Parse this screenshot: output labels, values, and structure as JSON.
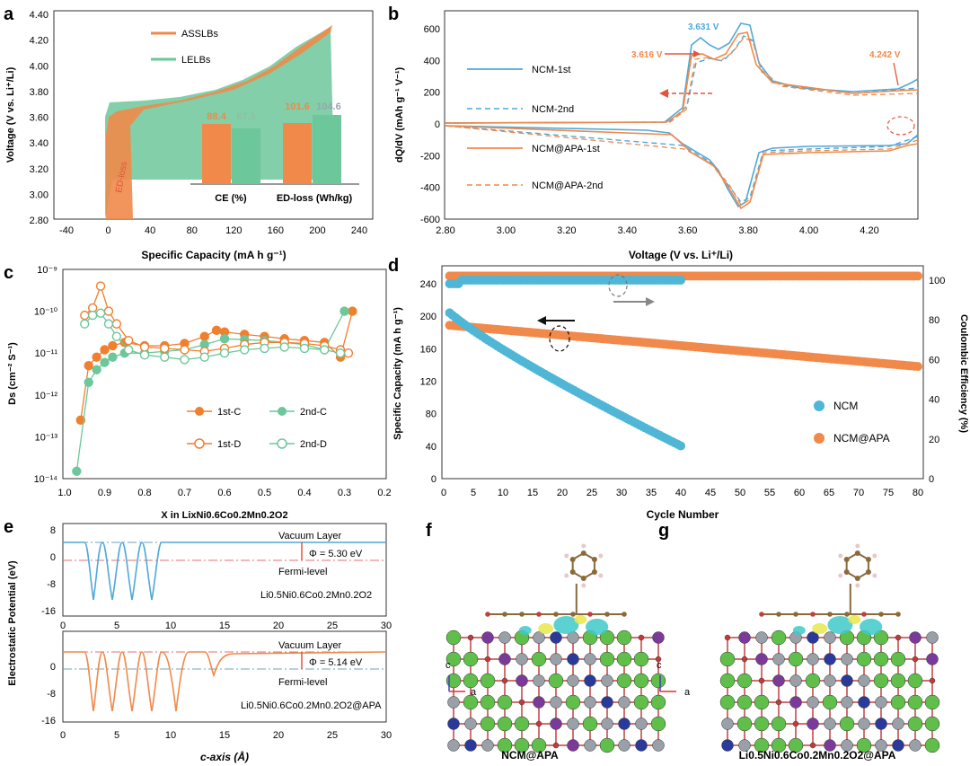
{
  "panels": {
    "a": {
      "letter": "a",
      "ylabel": "Voltage (V vs. Li⁺/Li)",
      "xlabel": "Specific Capacity (mA h g⁻¹)",
      "legend": [
        "ASSLBs",
        "LELBs"
      ],
      "colors": {
        "asslb": "#f0894a",
        "lelb": "#6cc79a"
      },
      "yticks": [
        "2.80",
        "3.00",
        "3.20",
        "3.40",
        "3.60",
        "3.80",
        "4.00",
        "4.20",
        "4.40"
      ],
      "xticks": [
        "-40",
        "0",
        "40",
        "80",
        "120",
        "160",
        "200",
        "240"
      ],
      "annotation": "ED-loss",
      "inset": {
        "groups": [
          "CE (%)",
          "ED-loss (Wh/kg)"
        ],
        "values": [
          [
            88.4,
            87.5
          ],
          [
            101.6,
            104.6
          ]
        ],
        "labels": [
          [
            "88.4",
            "87.5"
          ],
          [
            "101.6",
            "104.6"
          ]
        ]
      }
    },
    "b": {
      "letter": "b",
      "ylabel": "dQ/dV (mAh g⁻¹ V⁻¹)",
      "xlabel": "Voltage (V vs. Li⁺/Li)",
      "legend": [
        "NCM-1st",
        "NCM-2nd",
        "NCM@APA-1st",
        "NCM@APA-2nd"
      ],
      "yticks": [
        "600",
        "400",
        "200",
        "0",
        "-200",
        "-400",
        "-600"
      ],
      "xticks": [
        "2.80",
        "3.00",
        "3.20",
        "3.40",
        "3.60",
        "3.80",
        "4.00",
        "4.20"
      ],
      "ann": [
        "3.631 V",
        "3.616 V",
        "4.242 V"
      ]
    },
    "c": {
      "letter": "c",
      "ylabel": "Ds (cm⁻² S⁻¹)",
      "xlabel": "X in LixNi0.6Co0.2Mn0.2O2",
      "yticks": [
        "10⁻⁹",
        "10⁻¹⁰",
        "10⁻¹¹",
        "10⁻¹²",
        "10⁻¹³",
        "10⁻¹⁴"
      ],
      "xticks": [
        "1.0",
        "0.9",
        "0.8",
        "0.7",
        "0.6",
        "0.5",
        "0.4",
        "0.3",
        "0.2"
      ],
      "legend": [
        "1st-C",
        "2nd-C",
        "1st-D",
        "2nd-D"
      ]
    },
    "d": {
      "letter": "d",
      "ylabel": "Specific Capacity (mA h g⁻¹)",
      "ylabel2": "Coulombic Efficiency (%)",
      "xlabel": "Cycle Number",
      "yticks": [
        "240",
        "200",
        "160",
        "120",
        "80",
        "40",
        "0"
      ],
      "y2ticks": [
        "100",
        "80",
        "60",
        "40",
        "20",
        "0"
      ],
      "xticks": [
        "0",
        "5",
        "10",
        "15",
        "20",
        "25",
        "30",
        "35",
        "40",
        "45",
        "50",
        "55",
        "60",
        "65",
        "70",
        "75",
        "80"
      ],
      "legend": [
        "NCM",
        "NCM@APA"
      ],
      "colors": {
        "ncm": "#4fb6d6",
        "apa": "#f0894a"
      }
    },
    "e": {
      "letter": "e",
      "ylabel": "Electrostatic Potential (eV)",
      "xlabel": "c-axis (Å)",
      "yticks": [
        "0",
        "-8",
        "-16"
      ],
      "yticks_top": [
        "8",
        "0",
        "-8",
        "-16"
      ],
      "xticks": [
        "0",
        "5",
        "10",
        "15",
        "20",
        "25",
        "30"
      ],
      "top": {
        "vacuum": "Vacuum Layer",
        "fermi": "Fermi-level",
        "phi": "Φ = 5.30 eV",
        "formula": "Li0.5Ni0.6Co0.2Mn0.2O2"
      },
      "bottom": {
        "vacuum": "Vacuum Layer",
        "fermi": "Fermi-level",
        "phi": "Φ = 5.14 eV",
        "formula": "Li0.5Ni0.6Co0.2Mn0.2O2@APA"
      }
    },
    "f": {
      "letter": "f",
      "caption": "NCM@APA",
      "axis_c": "c",
      "axis_a": "a"
    },
    "g": {
      "letter": "g",
      "caption": "Li0.5Ni0.6Co0.2Mn0.2O2@APA",
      "axis_c": "c",
      "axis_a": "a"
    }
  },
  "chart_data": [
    {
      "type": "line",
      "panel": "a",
      "xlabel": "Specific Capacity (mA h g⁻¹)",
      "ylabel": "Voltage (V vs. Li⁺/Li)",
      "xlim": [
        -40,
        240
      ],
      "ylim": [
        2.8,
        4.4
      ],
      "series": [
        {
          "name": "ASSLBs",
          "x": [
            0,
            1,
            2,
            5,
            20,
            60,
            100,
            140,
            180,
            210
          ],
          "y": [
            2.8,
            3.4,
            3.55,
            3.62,
            3.66,
            3.7,
            3.78,
            3.9,
            4.1,
            4.3
          ]
        },
        {
          "name": "LELBs",
          "x": [
            0,
            1,
            5,
            20,
            60,
            100,
            140,
            180,
            212
          ],
          "y": [
            2.8,
            3.68,
            3.7,
            3.71,
            3.73,
            3.79,
            3.91,
            4.1,
            4.3
          ]
        }
      ],
      "inset": {
        "type": "bar",
        "categories": [
          "CE (%)",
          "ED-loss (Wh/kg)"
        ],
        "series": [
          {
            "name": "ASSLBs",
            "values": [
              88.4,
              101.6
            ]
          },
          {
            "name": "LELBs",
            "values": [
              87.5,
              104.6
            ]
          }
        ]
      }
    },
    {
      "type": "line",
      "panel": "b",
      "xlabel": "Voltage (V vs. Li⁺/Li)",
      "ylabel": "dQ/dV (mAh g⁻¹ V⁻¹)",
      "xlim": [
        2.8,
        4.3
      ],
      "ylim": [
        -600,
        650
      ],
      "series": [
        {
          "name": "NCM-1st",
          "peaks": [
            [
              3.631,
              520
            ],
            [
              3.76,
              630
            ],
            [
              3.76,
              -530
            ]
          ]
        },
        {
          "name": "NCM-2nd",
          "peaks": [
            [
              3.63,
              420
            ],
            [
              3.76,
              540
            ],
            [
              3.75,
              -510
            ]
          ]
        },
        {
          "name": "NCM@APA-1st",
          "peaks": [
            [
              3.616,
              430
            ],
            [
              3.76,
              580
            ],
            [
              3.75,
              -540
            ]
          ]
        },
        {
          "name": "NCM@APA-2nd",
          "peaks": [
            [
              3.62,
              400
            ],
            [
              3.76,
              550
            ],
            [
              3.75,
              -520
            ]
          ]
        }
      ]
    },
    {
      "type": "scatter",
      "panel": "c",
      "xlabel": "X in LixNi0.6Co0.2Mn0.2O2",
      "ylabel": "Ds (cm⁻² S⁻¹)",
      "xlim": [
        1.0,
        0.2
      ],
      "ylim": [
        1e-14,
        1e-09
      ],
      "yscale": "log",
      "series": [
        {
          "name": "1st-C",
          "x": [
            0.96,
            0.94,
            0.92,
            0.9,
            0.88,
            0.85,
            0.8,
            0.75,
            0.7,
            0.65,
            0.62,
            0.6,
            0.55,
            0.5,
            0.45,
            0.4,
            0.35,
            0.31,
            0.28
          ],
          "y": [
            2.5e-13,
            5e-12,
            8e-12,
            1.2e-11,
            1.5e-11,
            1.8e-11,
            1.5e-11,
            1.5e-11,
            1.7e-11,
            2.5e-11,
            3.5e-11,
            3.2e-11,
            2.8e-11,
            2.5e-11,
            2.2e-11,
            2e-11,
            1.8e-11,
            8e-12,
            1e-10
          ]
        },
        {
          "name": "2nd-C",
          "x": [
            0.97,
            0.94,
            0.92,
            0.9,
            0.88,
            0.85,
            0.8,
            0.75,
            0.7,
            0.65,
            0.6,
            0.55,
            0.5,
            0.45,
            0.4,
            0.35,
            0.3
          ],
          "y": [
            1.5e-14,
            2e-12,
            4e-12,
            6e-12,
            8e-12,
            1e-11,
            1e-11,
            1.1e-11,
            1.2e-11,
            1.6e-11,
            2.2e-11,
            2.1e-11,
            2e-11,
            1.8e-11,
            1.6e-11,
            1.2e-11,
            1e-10
          ]
        },
        {
          "name": "1st-D",
          "x": [
            0.95,
            0.93,
            0.91,
            0.89,
            0.87,
            0.84,
            0.8,
            0.75,
            0.7,
            0.65,
            0.6,
            0.55,
            0.5,
            0.45,
            0.4,
            0.35,
            0.31,
            0.29
          ],
          "y": [
            8e-11,
            1.2e-10,
            4e-10,
            1e-10,
            5e-11,
            2e-11,
            1.4e-11,
            1.3e-11,
            1.2e-11,
            1.1e-11,
            1.3e-11,
            1.6e-11,
            1.8e-11,
            1.8e-11,
            1.7e-11,
            1.5e-11,
            1.2e-11,
            1e-11
          ]
        },
        {
          "name": "2nd-D",
          "x": [
            0.95,
            0.93,
            0.91,
            0.89,
            0.87,
            0.84,
            0.8,
            0.75,
            0.7,
            0.65,
            0.6,
            0.55,
            0.5,
            0.45,
            0.4,
            0.35,
            0.31
          ],
          "y": [
            5e-11,
            8e-11,
            9e-11,
            5e-11,
            2.5e-11,
            1.2e-11,
            9e-12,
            8e-12,
            7e-12,
            8e-12,
            1e-11,
            1.2e-11,
            1.3e-11,
            1.4e-11,
            1.3e-11,
            1.2e-11,
            1e-11
          ]
        }
      ]
    },
    {
      "type": "scatter",
      "panel": "d",
      "xlabel": "Cycle Number",
      "ylabel": "Specific Capacity (mA h g⁻¹)",
      "ylabel2": "Coulombic Efficiency (%)",
      "xlim": [
        0,
        80
      ],
      "ylim": [
        0,
        260
      ],
      "ylim2": [
        0,
        104
      ],
      "series": [
        {
          "name": "NCM",
          "capacity_start": 210,
          "capacity_end": 40,
          "cycles": 40,
          "ce": 97
        },
        {
          "name": "NCM@APA",
          "capacity_start": 188,
          "capacity_end": 137,
          "cycles": 80,
          "ce": 99
        }
      ]
    },
    {
      "type": "line",
      "panel": "e",
      "xlabel": "c-axis (Å)",
      "ylabel": "Electrostatic Potential (eV)",
      "xlim": [
        0,
        30
      ],
      "series": [
        {
          "name": "Li0.5Ni0.6Co0.2Mn0.2O2",
          "vacuum": 3.2,
          "fermi": -2.1,
          "wells": [
            3,
            5.2,
            7.6,
            10.2
          ],
          "work_function": 5.3
        },
        {
          "name": "Li0.5Ni0.6Co0.2Mn0.2O2@APA",
          "vacuum": 3.0,
          "fermi": -2.1,
          "wells": [
            3,
            5.2,
            7.6,
            10.2,
            14.5
          ],
          "work_function": 5.14
        }
      ]
    }
  ]
}
